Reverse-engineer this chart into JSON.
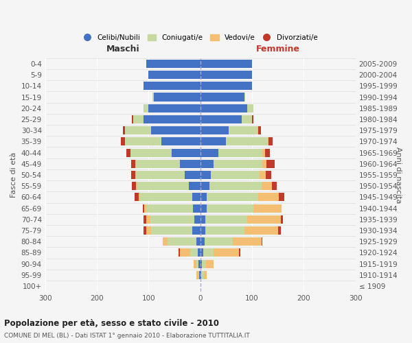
{
  "age_groups": [
    "100+",
    "95-99",
    "90-94",
    "85-89",
    "80-84",
    "75-79",
    "70-74",
    "65-69",
    "60-64",
    "55-59",
    "50-54",
    "45-49",
    "40-44",
    "35-39",
    "30-34",
    "25-29",
    "20-24",
    "15-19",
    "10-14",
    "5-9",
    "0-4"
  ],
  "birth_years": [
    "≤ 1909",
    "1910-1914",
    "1915-1919",
    "1920-1924",
    "1925-1929",
    "1930-1934",
    "1935-1939",
    "1940-1944",
    "1945-1949",
    "1950-1954",
    "1955-1959",
    "1960-1964",
    "1965-1969",
    "1970-1974",
    "1975-1979",
    "1980-1984",
    "1985-1989",
    "1990-1994",
    "1995-1999",
    "2000-2004",
    "2005-2009"
  ],
  "males": {
    "celibi": [
      0,
      2,
      3,
      5,
      8,
      15,
      12,
      14,
      16,
      22,
      30,
      40,
      55,
      75,
      95,
      110,
      100,
      90,
      110,
      100,
      105
    ],
    "coniugati": [
      0,
      2,
      4,
      15,
      55,
      80,
      85,
      90,
      100,
      100,
      95,
      85,
      80,
      70,
      50,
      20,
      8,
      2,
      0,
      0,
      0
    ],
    "vedovi": [
      0,
      3,
      6,
      20,
      10,
      10,
      8,
      5,
      3,
      2,
      1,
      1,
      0,
      0,
      0,
      0,
      2,
      0,
      0,
      0,
      0
    ],
    "divorziati": [
      0,
      0,
      0,
      2,
      0,
      5,
      5,
      2,
      8,
      8,
      8,
      8,
      8,
      8,
      5,
      2,
      0,
      0,
      0,
      0,
      0
    ]
  },
  "females": {
    "nubili": [
      0,
      2,
      3,
      5,
      8,
      10,
      10,
      12,
      12,
      18,
      20,
      25,
      35,
      50,
      55,
      80,
      90,
      85,
      100,
      100,
      100
    ],
    "coniugate": [
      0,
      5,
      8,
      20,
      55,
      75,
      80,
      90,
      100,
      100,
      95,
      95,
      85,
      80,
      55,
      20,
      12,
      2,
      0,
      0,
      0
    ],
    "vedove": [
      0,
      5,
      15,
      50,
      55,
      65,
      65,
      55,
      40,
      20,
      12,
      8,
      5,
      2,
      2,
      0,
      0,
      0,
      0,
      0,
      0
    ],
    "divorziate": [
      0,
      0,
      0,
      2,
      2,
      5,
      5,
      0,
      10,
      10,
      10,
      15,
      10,
      8,
      5,
      2,
      0,
      0,
      0,
      0,
      0
    ]
  },
  "colors": {
    "celibi": "#4472c4",
    "coniugati": "#c5d9a0",
    "vedovi": "#f4bf72",
    "divorziati": "#c0392b"
  },
  "xlim": 300,
  "title": "Popolazione per età, sesso e stato civile - 2010",
  "subtitle": "COMUNE DI MEL (BL) - Dati ISTAT 1° gennaio 2010 - Elaborazione TUTTITALIA.IT",
  "ylabel_left": "Fasce di età",
  "ylabel_right": "Anni di nascita",
  "xlabel_left": "Maschi",
  "xlabel_right": "Femmine",
  "bg_color": "#f5f5f5",
  "legend_labels": [
    "Celibi/Nubili",
    "Coniugati/e",
    "Vedovi/e",
    "Divorziati/e"
  ]
}
